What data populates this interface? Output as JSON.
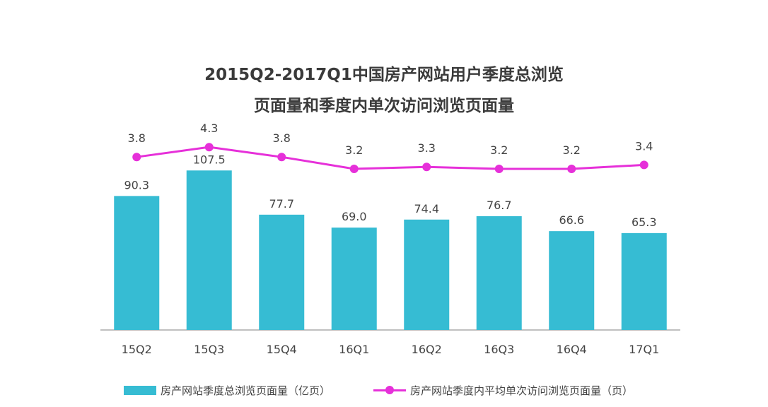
{
  "chart_data": {
    "type": "bar",
    "title_lines": [
      "2015Q2-2017Q1中国房产网站用户季度总浏览",
      "页面量和季度内单次访问浏览页面量"
    ],
    "categories": [
      "15Q2",
      "15Q3",
      "15Q4",
      "16Q1",
      "16Q2",
      "16Q3",
      "16Q4",
      "17Q1"
    ],
    "series": [
      {
        "name": "房产网站季度总浏览页面量（亿页）",
        "type": "bar",
        "color": "#36bcd3",
        "values": [
          90.3,
          107.5,
          77.7,
          69.0,
          74.4,
          76.7,
          66.6,
          65.3
        ],
        "labels": [
          "90.3",
          "107.5",
          "77.7",
          "69.0",
          "74.4",
          "76.7",
          "66.6",
          "65.3"
        ]
      },
      {
        "name": "房产网站季度内平均单次访问浏览页面量（页）",
        "type": "line",
        "color": "#e630d9",
        "values": [
          3.8,
          4.3,
          3.8,
          3.2,
          3.3,
          3.2,
          3.2,
          3.4
        ],
        "labels": [
          "3.8",
          "4.3",
          "3.8",
          "3.2",
          "3.3",
          "3.2",
          "3.2",
          "3.4"
        ]
      }
    ],
    "grid": false,
    "legend_position": "bottom"
  }
}
